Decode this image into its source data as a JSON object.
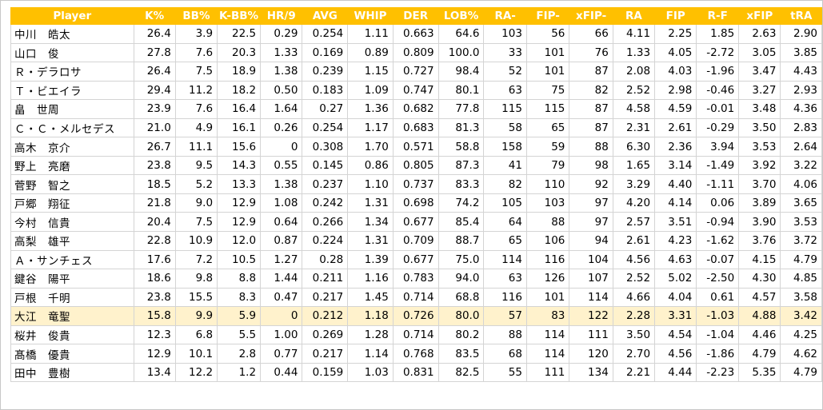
{
  "columns": [
    "Player",
    "K%",
    "BB%",
    "K-BB%",
    "HR/9",
    "AVG",
    "WHIP",
    "DER",
    "LOB%",
    "RA-",
    "FIP-",
    "xFIP-",
    "RA",
    "FIP",
    "R-F",
    "xFIP",
    "tRA"
  ],
  "highlight_row": 15,
  "colors": {
    "header_bg": "#ffc000",
    "header_text": "#ffffff",
    "highlight_bg": "#fff2cc",
    "grid": "#d4d4d4"
  },
  "rows": [
    [
      "中川　皓太",
      "26.4",
      "3.9",
      "22.5",
      "0.29",
      "0.254",
      "1.11",
      "0.663",
      "64.6",
      "103",
      "56",
      "66",
      "4.11",
      "2.25",
      "1.85",
      "2.63",
      "2.90"
    ],
    [
      "山口　俊",
      "27.8",
      "7.6",
      "20.3",
      "1.33",
      "0.169",
      "0.89",
      "0.809",
      "100.0",
      "33",
      "101",
      "76",
      "1.33",
      "4.05",
      "-2.72",
      "3.05",
      "3.85"
    ],
    [
      "Ｒ・デラロサ",
      "26.4",
      "7.5",
      "18.9",
      "1.38",
      "0.239",
      "1.15",
      "0.727",
      "98.4",
      "52",
      "101",
      "87",
      "2.08",
      "4.03",
      "-1.96",
      "3.47",
      "4.43"
    ],
    [
      "Ｔ・ビエイラ",
      "29.4",
      "11.2",
      "18.2",
      "0.50",
      "0.183",
      "1.09",
      "0.747",
      "80.1",
      "63",
      "75",
      "82",
      "2.52",
      "2.98",
      "-0.46",
      "3.27",
      "2.93"
    ],
    [
      "畠　世周",
      "23.9",
      "7.6",
      "16.4",
      "1.64",
      "0.27",
      "1.36",
      "0.682",
      "77.8",
      "115",
      "115",
      "87",
      "4.58",
      "4.59",
      "-0.01",
      "3.48",
      "4.36"
    ],
    [
      "Ｃ・Ｃ・メルセデス",
      "21.0",
      "4.9",
      "16.1",
      "0.26",
      "0.254",
      "1.17",
      "0.683",
      "81.3",
      "58",
      "65",
      "87",
      "2.31",
      "2.61",
      "-0.29",
      "3.50",
      "2.83"
    ],
    [
      "高木　京介",
      "26.7",
      "11.1",
      "15.6",
      "0",
      "0.308",
      "1.70",
      "0.571",
      "58.8",
      "158",
      "59",
      "88",
      "6.30",
      "2.36",
      "3.94",
      "3.53",
      "2.64"
    ],
    [
      "野上　亮磨",
      "23.8",
      "9.5",
      "14.3",
      "0.55",
      "0.145",
      "0.86",
      "0.805",
      "87.3",
      "41",
      "79",
      "98",
      "1.65",
      "3.14",
      "-1.49",
      "3.92",
      "3.22"
    ],
    [
      "菅野　智之",
      "18.5",
      "5.2",
      "13.3",
      "1.38",
      "0.237",
      "1.10",
      "0.737",
      "83.3",
      "82",
      "110",
      "92",
      "3.29",
      "4.40",
      "-1.11",
      "3.70",
      "4.06"
    ],
    [
      "戸郷　翔征",
      "21.8",
      "9.0",
      "12.9",
      "1.08",
      "0.242",
      "1.31",
      "0.698",
      "74.2",
      "105",
      "103",
      "97",
      "4.20",
      "4.14",
      "0.06",
      "3.89",
      "3.65"
    ],
    [
      "今村　信貴",
      "20.4",
      "7.5",
      "12.9",
      "0.64",
      "0.266",
      "1.34",
      "0.677",
      "85.4",
      "64",
      "88",
      "97",
      "2.57",
      "3.51",
      "-0.94",
      "3.90",
      "3.53"
    ],
    [
      "高梨　雄平",
      "22.8",
      "10.9",
      "12.0",
      "0.87",
      "0.224",
      "1.31",
      "0.709",
      "88.7",
      "65",
      "106",
      "94",
      "2.61",
      "4.23",
      "-1.62",
      "3.76",
      "3.72"
    ],
    [
      "Ａ・サンチェス",
      "17.6",
      "7.2",
      "10.5",
      "1.27",
      "0.28",
      "1.39",
      "0.677",
      "75.0",
      "114",
      "116",
      "104",
      "4.56",
      "4.63",
      "-0.07",
      "4.15",
      "4.79"
    ],
    [
      "鍵谷　陽平",
      "18.6",
      "9.8",
      "8.8",
      "1.44",
      "0.211",
      "1.16",
      "0.783",
      "94.0",
      "63",
      "126",
      "107",
      "2.52",
      "5.02",
      "-2.50",
      "4.30",
      "4.85"
    ],
    [
      "戸根　千明",
      "23.8",
      "15.5",
      "8.3",
      "0.47",
      "0.217",
      "1.45",
      "0.714",
      "68.8",
      "116",
      "101",
      "114",
      "4.66",
      "4.04",
      "0.61",
      "4.57",
      "3.58"
    ],
    [
      "大江　竜聖",
      "15.8",
      "9.9",
      "5.9",
      "0",
      "0.212",
      "1.18",
      "0.726",
      "80.0",
      "57",
      "83",
      "122",
      "2.28",
      "3.31",
      "-1.03",
      "4.88",
      "3.42"
    ],
    [
      "桜井　俊貴",
      "12.3",
      "6.8",
      "5.5",
      "1.00",
      "0.269",
      "1.28",
      "0.714",
      "80.2",
      "88",
      "114",
      "111",
      "3.50",
      "4.54",
      "-1.04",
      "4.46",
      "4.25"
    ],
    [
      "髙橋　優貴",
      "12.9",
      "10.1",
      "2.8",
      "0.77",
      "0.217",
      "1.14",
      "0.768",
      "83.5",
      "68",
      "114",
      "120",
      "2.70",
      "4.56",
      "-1.86",
      "4.79",
      "4.62"
    ],
    [
      "田中　豊樹",
      "13.4",
      "12.2",
      "1.2",
      "0.44",
      "0.159",
      "1.03",
      "0.831",
      "82.5",
      "55",
      "111",
      "134",
      "2.21",
      "4.44",
      "-2.23",
      "5.35",
      "4.79"
    ]
  ]
}
